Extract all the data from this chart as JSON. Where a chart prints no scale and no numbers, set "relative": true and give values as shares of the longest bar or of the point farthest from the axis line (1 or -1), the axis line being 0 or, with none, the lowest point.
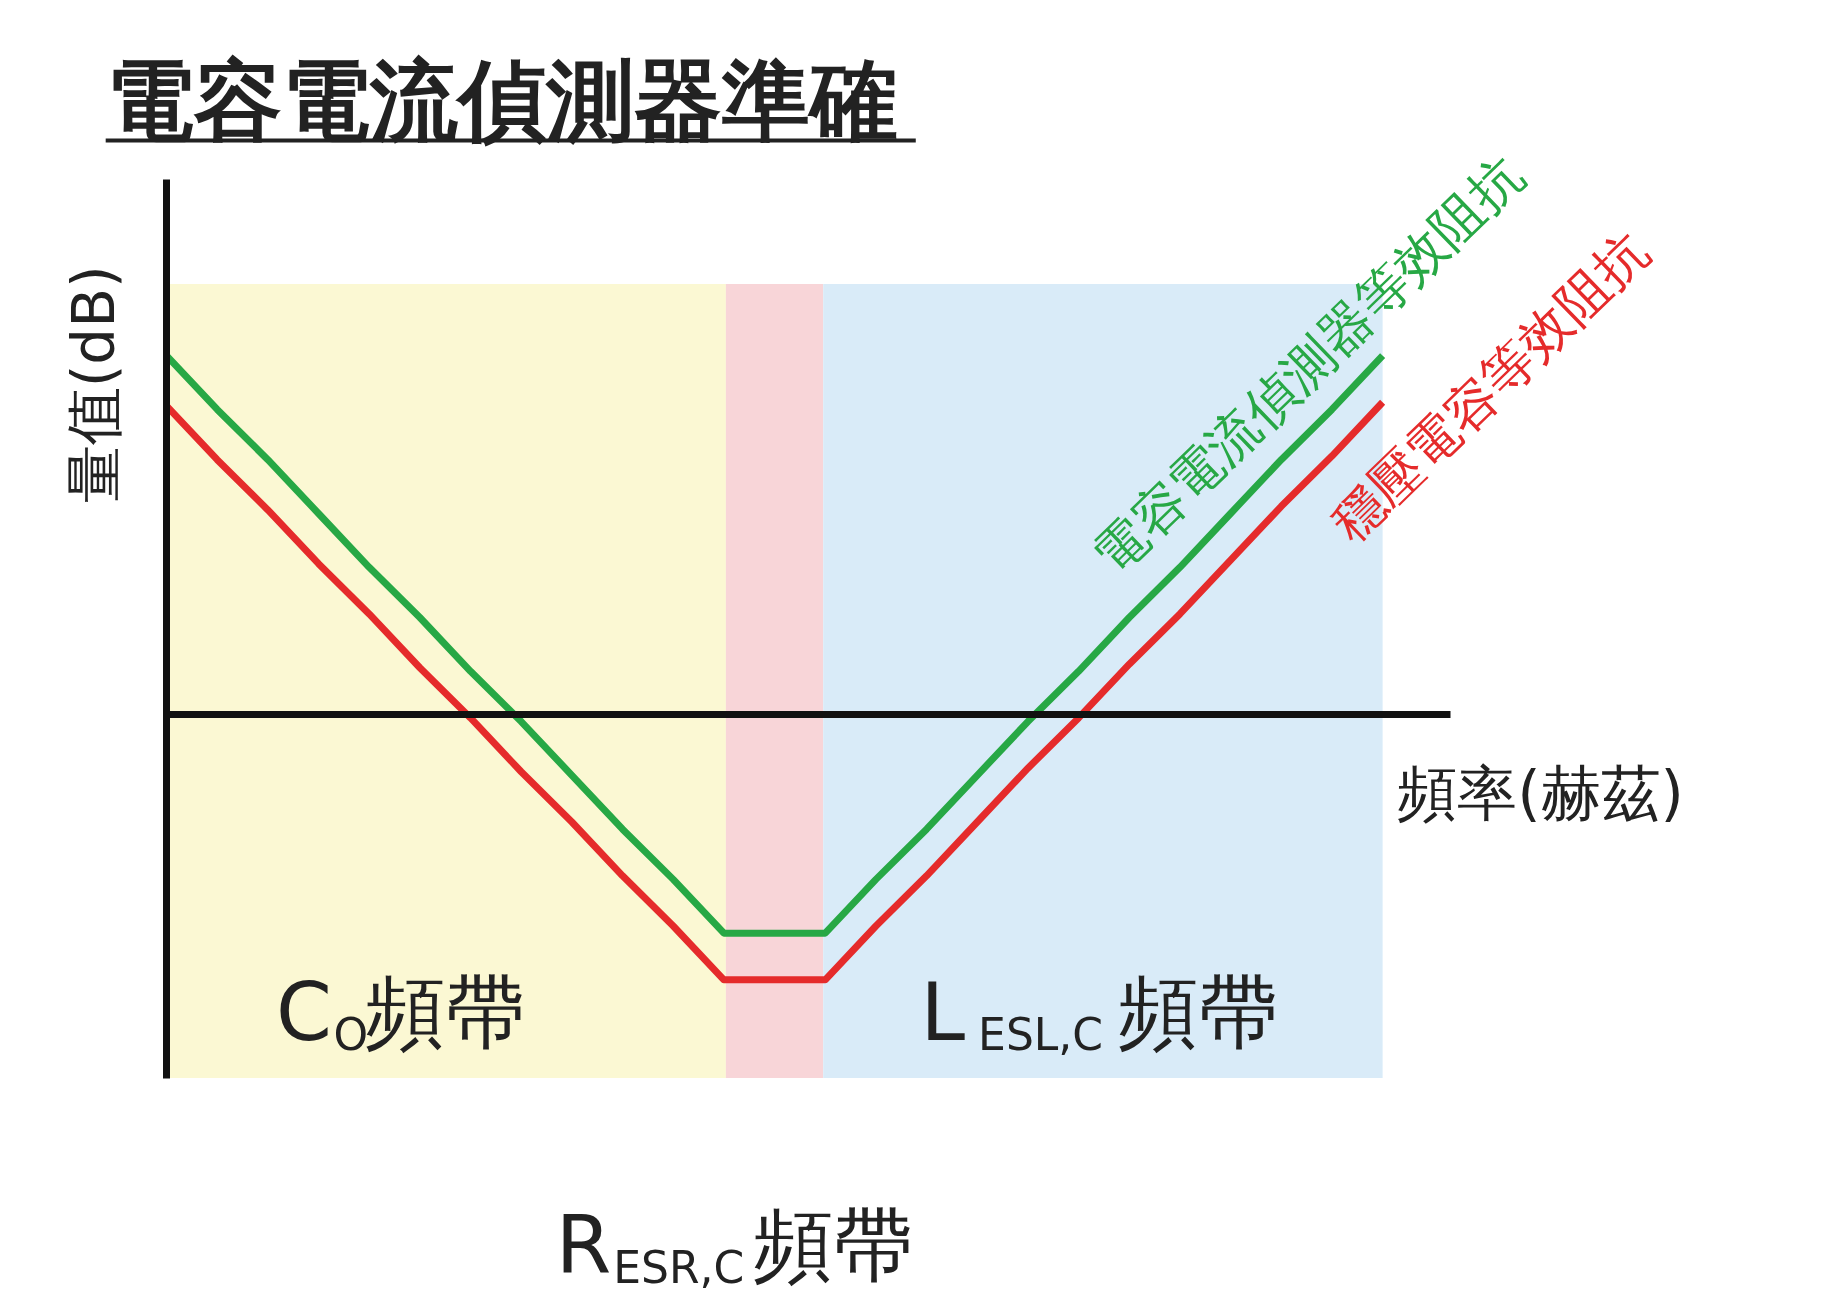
{
  "chart_data": {
    "type": "line",
    "relative": true,
    "title": "電容電流偵測器準確",
    "xlabel": "頻率(赫茲)",
    "ylabel": "量值(dB)",
    "categories": [
      null,
      null,
      null,
      null,
      null,
      null,
      null,
      null,
      null,
      null,
      null,
      null,
      null,
      null,
      null,
      null,
      null,
      null,
      null,
      null,
      null,
      null,
      null,
      null,
      null
    ],
    "series": [
      {
        "name": "電容電流偵測器等效阻抗",
        "color": "#27a845",
        "values": [
          1,
          0.85,
          0.71,
          0.56,
          0.41,
          0.27,
          0.12,
          -0.02,
          -0.17,
          -0.32,
          -0.46,
          -0.61,
          -0.61,
          -0.61,
          -0.46,
          -0.32,
          -0.17,
          -0.02,
          0.12,
          0.27,
          0.41,
          0.56,
          0.71,
          0.85,
          1
        ]
      },
      {
        "name": "穩壓電容等效阻抗",
        "color": "#e52b2b",
        "values": [
          0.86,
          0.71,
          0.57,
          0.42,
          0.28,
          0.13,
          -0.01,
          -0.16,
          -0.3,
          -0.45,
          -0.59,
          -0.74,
          -0.74,
          -0.74,
          -0.59,
          -0.45,
          -0.3,
          -0.15,
          -0.01,
          0.14,
          0.28,
          0.43,
          0.58,
          0.72,
          0.87
        ]
      }
    ],
    "annotations": [
      "C$_{O}$頻帶",
      "L$_{ESL,C}$頻帶",
      "R$_{ESR,C}$頻帶"
    ]
  }
}
